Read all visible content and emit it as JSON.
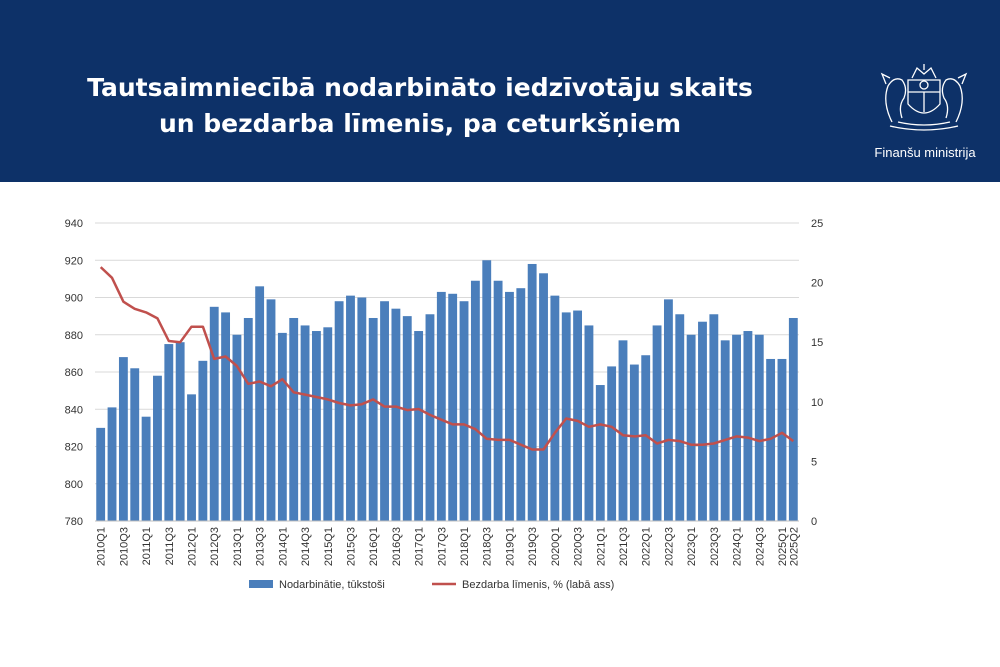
{
  "header": {
    "title_line1": "Tautsaimniecībā nodarbināto iedzīvotāju skaits",
    "title_line2": "un bezdarba līmenis, pa ceturkšņiem",
    "ministry": "Finanšu ministrija",
    "logo_icon": "latvia-coat-of-arms-icon",
    "background_color": "#0d3168"
  },
  "chart_data": {
    "type": "bar",
    "categories": [
      "2010Q1",
      "2010Q2",
      "2010Q3",
      "2010Q4",
      "2011Q1",
      "2011Q2",
      "2011Q3",
      "2011Q4",
      "2012Q1",
      "2012Q2",
      "2012Q3",
      "2012Q4",
      "2013Q1",
      "2013Q2",
      "2013Q3",
      "2013Q4",
      "2014Q1",
      "2014Q2",
      "2014Q3",
      "2014Q4",
      "2015Q1",
      "2015Q2",
      "2015Q3",
      "2015Q4",
      "2016Q1",
      "2016Q2",
      "2016Q3",
      "2016Q4",
      "2017Q1",
      "2017Q2",
      "2017Q3",
      "2017Q4",
      "2018Q1",
      "2018Q2",
      "2018Q3",
      "2018Q4",
      "2019Q1",
      "2019Q2",
      "2019Q3",
      "2019Q4",
      "2020Q1",
      "2020Q2",
      "2020Q3",
      "2020Q4",
      "2021Q1",
      "2021Q2",
      "2021Q3",
      "2021Q4",
      "2022Q1",
      "2022Q2",
      "2022Q3",
      "2022Q4",
      "2023Q1",
      "2023Q2",
      "2023Q3",
      "2023Q4",
      "2024Q1",
      "2024Q2",
      "2024Q3",
      "2024Q4",
      "2025Q1",
      "2025Q2"
    ],
    "x_tick_labels": [
      "2010Q1",
      "2010Q3",
      "2011Q1",
      "2011Q3",
      "2012Q1",
      "2012Q3",
      "2013Q1",
      "2013Q3",
      "2014Q1",
      "2014Q3",
      "2015Q1",
      "2015Q3",
      "2016Q1",
      "2016Q3",
      "2017Q1",
      "2017Q3",
      "2018Q1",
      "2018Q3",
      "2019Q1",
      "2019Q3",
      "2020Q1",
      "2020Q3",
      "2021Q1",
      "2021Q3",
      "2022Q1",
      "2022Q3",
      "2023Q1",
      "2023Q3",
      "2024Q1",
      "2024Q3",
      "2025Q1",
      "2025Q2"
    ],
    "series": [
      {
        "name": "Nodarbinātie, tūkstoši",
        "type": "bar",
        "axis": "left",
        "color": "#4a7ebb",
        "values": [
          830,
          841,
          868,
          862,
          836,
          858,
          875,
          876,
          848,
          866,
          895,
          892,
          880,
          889,
          906,
          899,
          881,
          889,
          885,
          882,
          884,
          898,
          901,
          900,
          889,
          898,
          894,
          890,
          882,
          891,
          903,
          902,
          898,
          909,
          920,
          909,
          903,
          905,
          918,
          913,
          901,
          892,
          893,
          885,
          853,
          863,
          877,
          864,
          869,
          885,
          899,
          891,
          880,
          887,
          891,
          877,
          880,
          882,
          880,
          867,
          867,
          889
        ]
      },
      {
        "name": "Bezdarba līmenis, % (labā ass)",
        "type": "line",
        "axis": "right",
        "color": "#c0504d",
        "values": [
          21.3,
          20.4,
          18.4,
          17.8,
          17.5,
          17.0,
          15.1,
          15.0,
          16.3,
          16.3,
          13.6,
          13.8,
          13.0,
          11.5,
          11.7,
          11.3,
          11.9,
          10.8,
          10.6,
          10.4,
          10.2,
          9.9,
          9.7,
          9.8,
          10.2,
          9.6,
          9.6,
          9.3,
          9.4,
          8.9,
          8.5,
          8.1,
          8.1,
          7.7,
          6.9,
          6.8,
          6.8,
          6.4,
          6.0,
          6.0,
          7.4,
          8.6,
          8.4,
          7.9,
          8.1,
          7.9,
          7.2,
          7.1,
          7.2,
          6.5,
          6.8,
          6.7,
          6.4,
          6.4,
          6.5,
          6.8,
          7.1,
          7.0,
          6.7,
          6.9,
          7.4,
          6.7
        ]
      }
    ],
    "y_left": {
      "ylim": [
        780,
        940
      ],
      "ticks": [
        "780",
        "800",
        "820",
        "840",
        "860",
        "880",
        "900",
        "920",
        "940"
      ]
    },
    "y_right": {
      "ylim": [
        0,
        25
      ],
      "ticks": [
        "0",
        "5",
        "10",
        "15",
        "20",
        "25"
      ]
    },
    "grid": true,
    "legend_position": "bottom"
  }
}
